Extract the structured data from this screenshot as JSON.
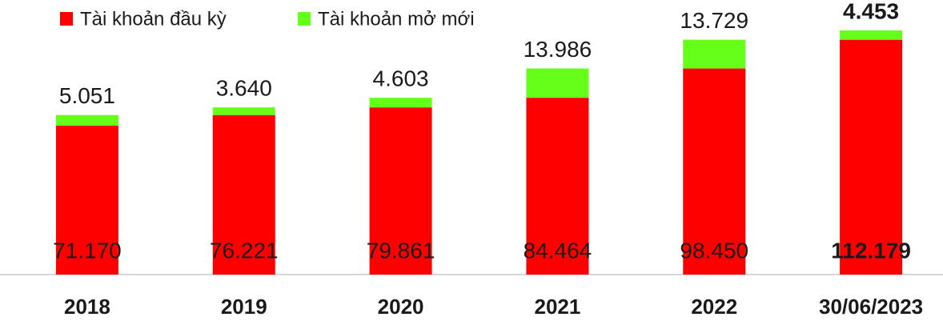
{
  "chart_data": {
    "type": "stacked_bar",
    "categories": [
      "2018",
      "2019",
      "2020",
      "2021",
      "2022",
      "30/06/2023"
    ],
    "series": [
      {
        "name": "Tài khoản đầu kỳ",
        "color": "#ff0000",
        "values": [
          71170,
          76221,
          79861,
          84464,
          98450,
          112179
        ],
        "value_labels": [
          "71.170",
          "76.221",
          "79.861",
          "84.464",
          "98.450",
          "112.179"
        ]
      },
      {
        "name": "Tài khoản mở mới",
        "color": "#66ff1a",
        "values": [
          5051,
          3640,
          4603,
          13986,
          13729,
          4453
        ],
        "value_labels": [
          "5.051",
          "3.640",
          "4.603",
          "13.986",
          "13.729",
          "4.453"
        ]
      }
    ],
    "legend": "top-left"
  }
}
